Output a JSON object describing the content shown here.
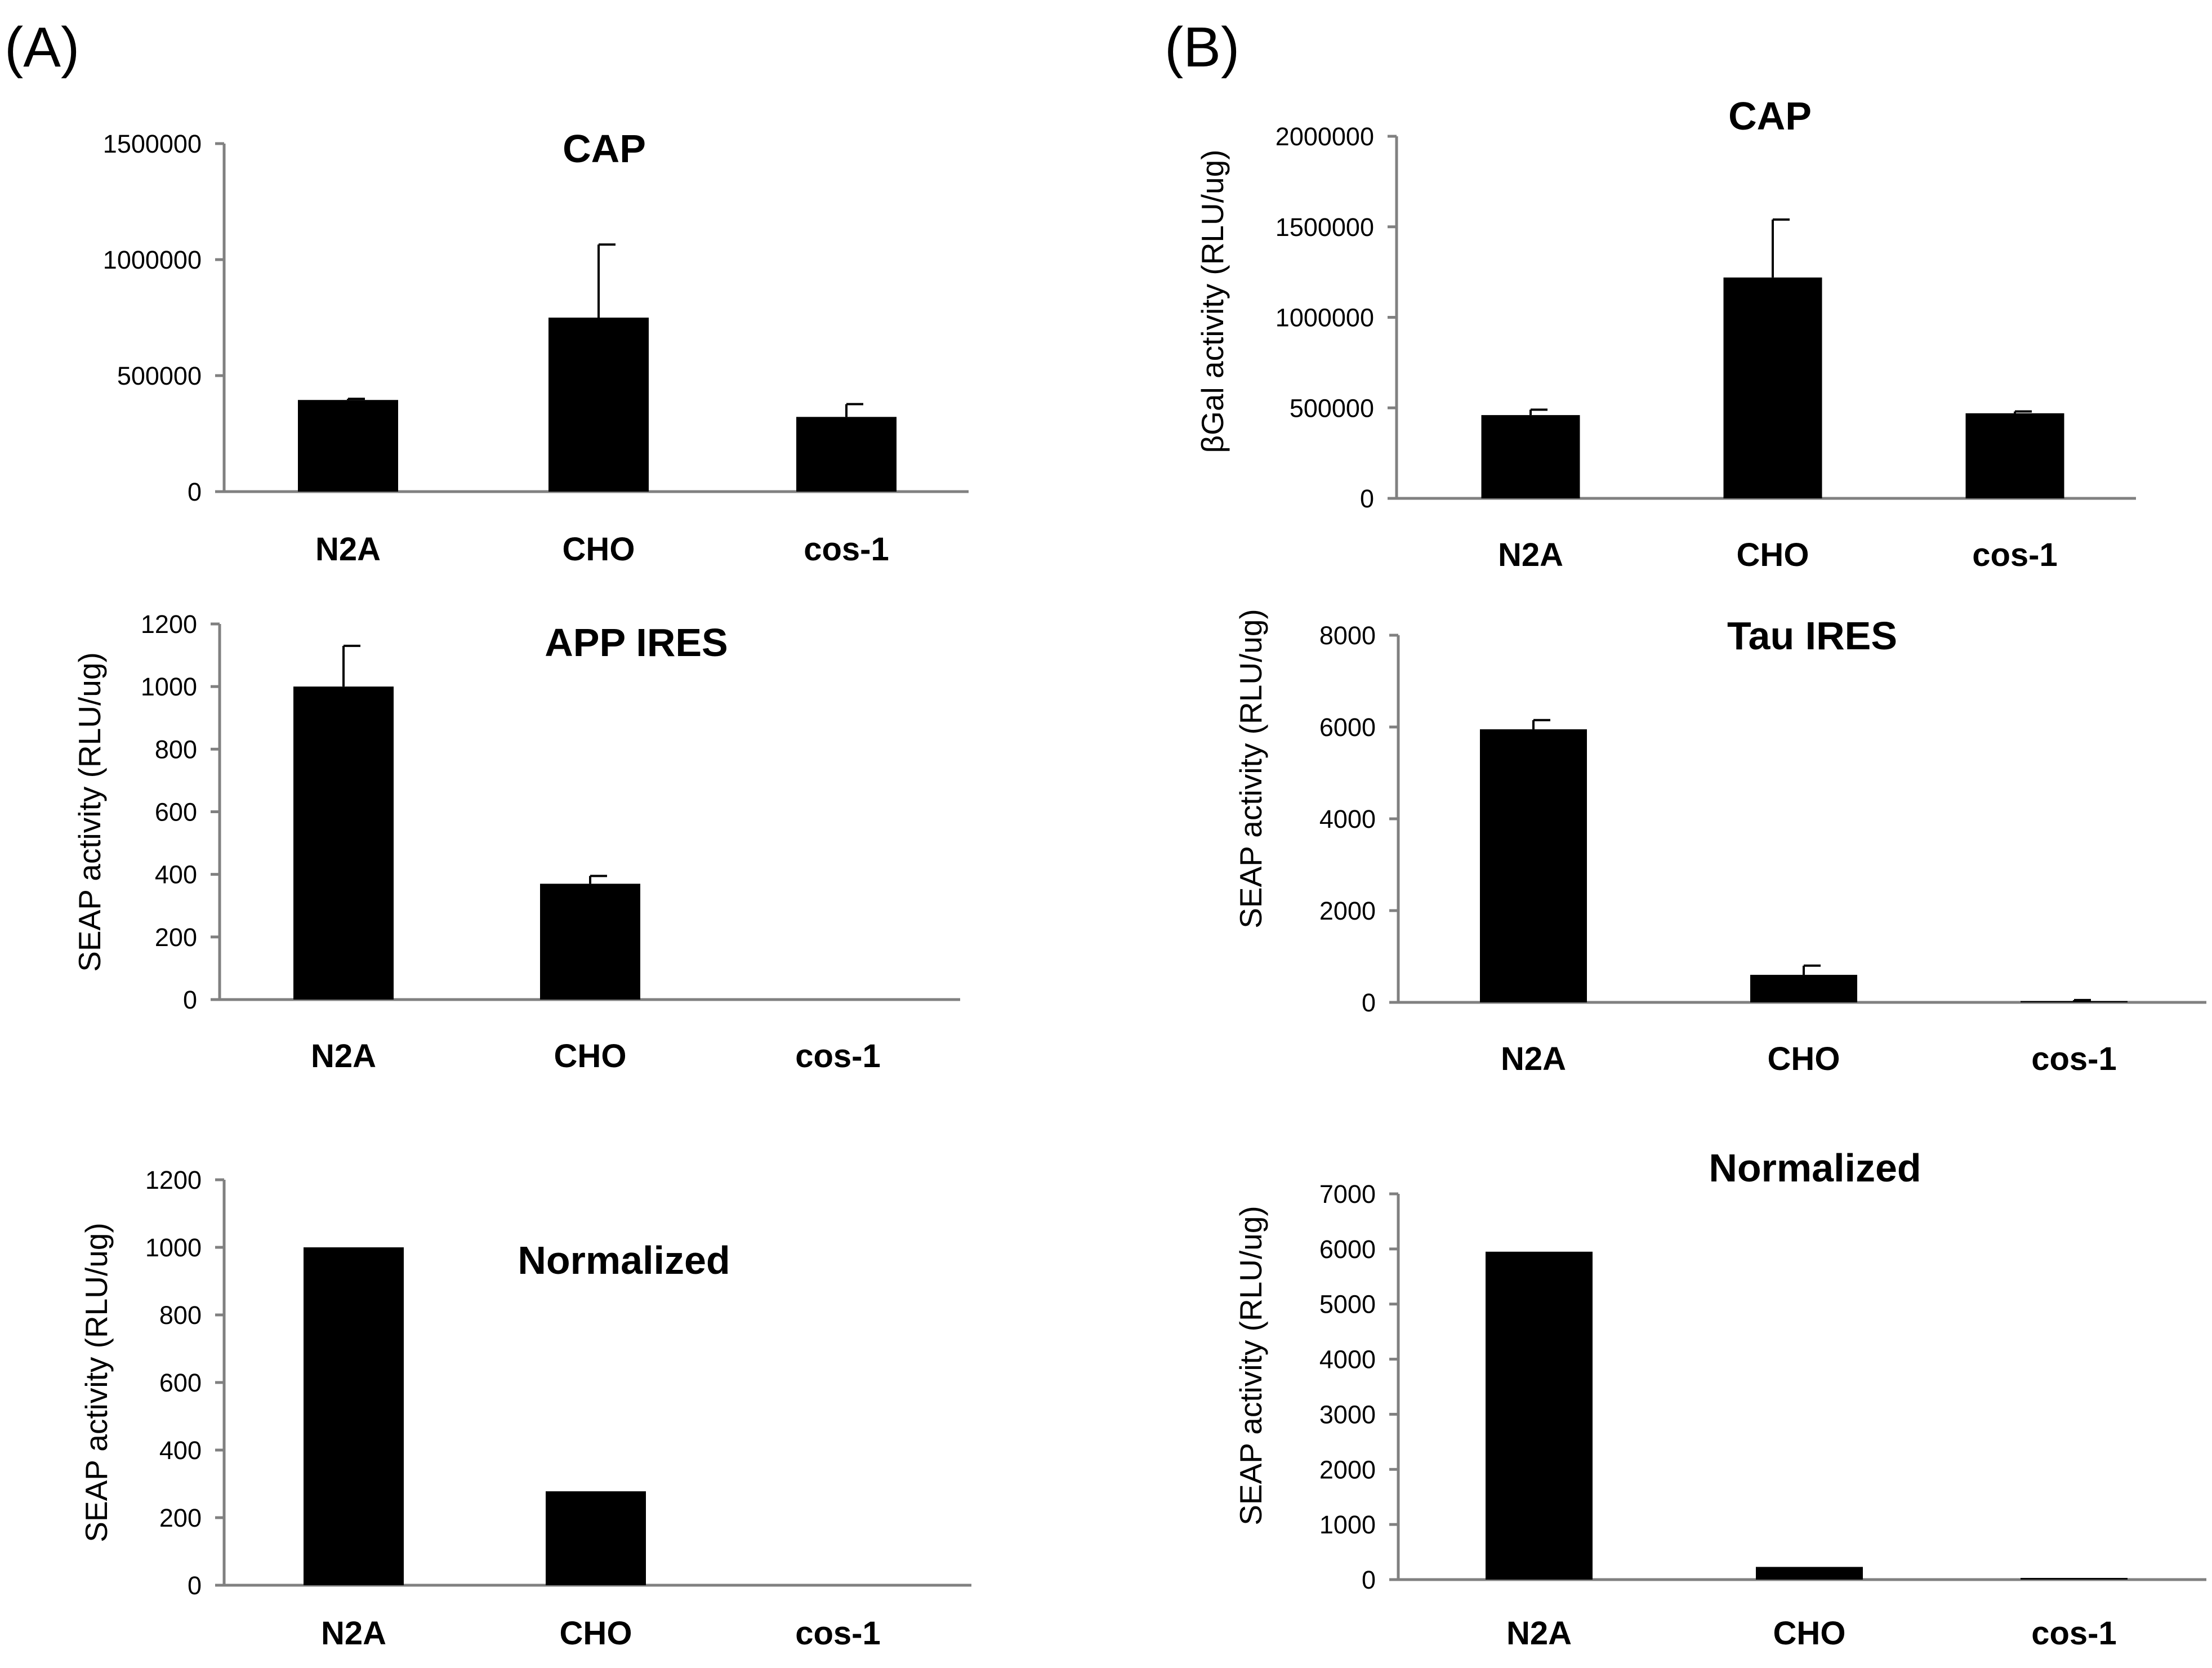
{
  "panel_labels": [
    "(A)",
    "(B)"
  ],
  "chart_data": [
    {
      "panel": "A",
      "type": "bar",
      "title": "CAP",
      "ylabel": "",
      "xlabel": "",
      "categories": [
        "N2A",
        "CHO",
        "cos-1"
      ],
      "values": [
        395000,
        750000,
        322000
      ],
      "errors": [
        5000,
        315000,
        55000
      ],
      "yticks": [
        0,
        500000,
        1000000,
        1500000
      ],
      "ytick_labels": [
        "0",
        "500000",
        "1000000",
        "1500000"
      ],
      "ylim": [
        0,
        1500000
      ],
      "bar_color": "#000000"
    },
    {
      "panel": "A",
      "type": "bar",
      "title": "APP IRES",
      "ylabel": "SEAP activity (RLU/ug)",
      "xlabel": "",
      "categories": [
        "N2A",
        "CHO",
        "cos-1"
      ],
      "values": [
        1000,
        370,
        0
      ],
      "errors": [
        130,
        25,
        0
      ],
      "yticks": [
        0,
        200,
        400,
        600,
        800,
        1000,
        1200
      ],
      "ytick_labels": [
        "0",
        "200",
        "400",
        "600",
        "800",
        "1000",
        "1200"
      ],
      "ylim": [
        0,
        1200
      ],
      "bar_color": "#000000"
    },
    {
      "panel": "A",
      "type": "bar",
      "title": "Normalized",
      "ylabel": "SEAP activity (RLU/ug)",
      "xlabel": "",
      "categories": [
        "N2A",
        "CHO",
        "cos-1"
      ],
      "values": [
        1000,
        278,
        0
      ],
      "errors": [
        0,
        0,
        0
      ],
      "yticks": [
        0,
        200,
        400,
        600,
        800,
        1000,
        1200
      ],
      "ytick_labels": [
        "0",
        "200",
        "400",
        "600",
        "800",
        "1000",
        "1200"
      ],
      "ylim": [
        0,
        1200
      ],
      "bar_color": "#000000"
    },
    {
      "panel": "B",
      "type": "bar",
      "title": "CAP",
      "ylabel": "βGal activity (RLU/ug)",
      "xlabel": "",
      "categories": [
        "N2A",
        "CHO",
        "cos-1"
      ],
      "values": [
        460000,
        1220000,
        470000
      ],
      "errors": [
        30000,
        320000,
        10000
      ],
      "yticks": [
        0,
        500000,
        1000000,
        1500000,
        2000000
      ],
      "ytick_labels": [
        "0",
        "500000",
        "1000000",
        "1500000",
        "2000000"
      ],
      "ylim": [
        0,
        2000000
      ],
      "bar_color": "#000000"
    },
    {
      "panel": "B",
      "type": "bar",
      "title": "Tau IRES",
      "ylabel": "SEAP activity (RLU/ug)",
      "xlabel": "",
      "categories": [
        "N2A",
        "CHO",
        "cos-1"
      ],
      "values": [
        5950,
        600,
        30
      ],
      "errors": [
        200,
        200,
        20
      ],
      "yticks": [
        0,
        2000,
        4000,
        6000,
        8000
      ],
      "ytick_labels": [
        "0",
        "2000",
        "4000",
        "6000",
        "8000"
      ],
      "ylim": [
        0,
        8000
      ],
      "bar_color": "#000000"
    },
    {
      "panel": "B",
      "type": "bar",
      "title": "Normalized",
      "ylabel": "SEAP activity (RLU/ug)",
      "xlabel": "",
      "categories": [
        "N2A",
        "CHO",
        "cos-1"
      ],
      "values": [
        5950,
        230,
        30
      ],
      "errors": [
        0,
        0,
        0
      ],
      "yticks": [
        0,
        1000,
        2000,
        3000,
        4000,
        5000,
        6000,
        7000
      ],
      "ytick_labels": [
        "0",
        "1000",
        "2000",
        "3000",
        "4000",
        "5000",
        "6000",
        "7000"
      ],
      "ylim": [
        0,
        7000
      ],
      "bar_color": "#000000"
    }
  ]
}
